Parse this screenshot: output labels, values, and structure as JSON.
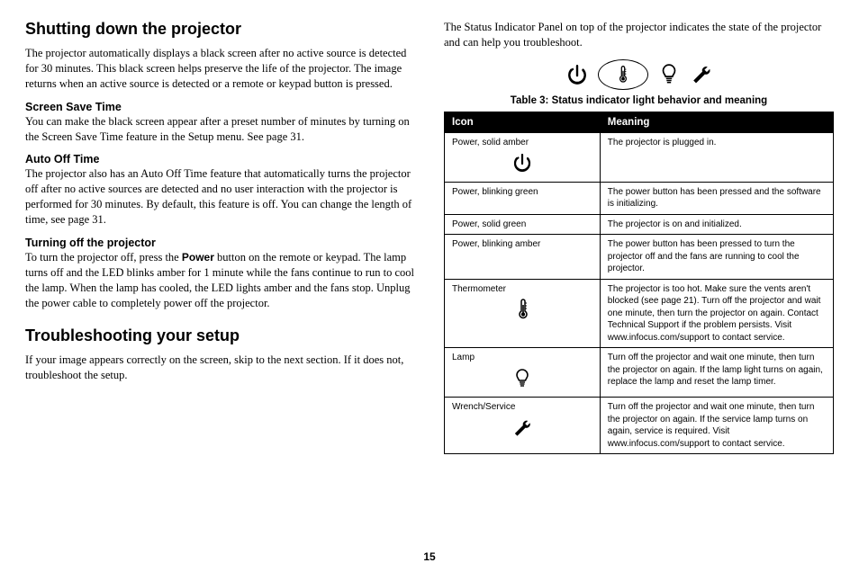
{
  "left": {
    "h1": "Shutting down the projector",
    "p1": "The projector automatically displays a black screen after no active source is detected for 30 minutes. This black screen helps preserve the life of the projector. The image returns when an active source is detected or a remote or keypad button is pressed.",
    "sub1": "Screen Save Time",
    "p2": "You can make the black screen appear after a preset number of minutes by turning on the Screen Save Time feature in the Setup menu. See page 31.",
    "sub2": "Auto Off Time",
    "p3": "The projector also has an Auto Off Time feature that automatically turns the projector off after no active sources are detected and no user interaction with the projector is performed for 30 minutes. By default, this feature is off. You can change the length of time, see page 31.",
    "sub3": "Turning off the projector",
    "p4a": "To turn the projector off, press the ",
    "p4bold": "Power",
    "p4b": " button on the remote or keypad. The lamp turns off and the LED blinks amber for 1 minute while the fans continue to run to cool the lamp. When the lamp has cooled, the LED lights amber and the fans stop. Unplug the power cable to completely power off the projector.",
    "h2": "Troubleshooting your setup",
    "p5": "If your image appears correctly on the screen, skip to the next section. If it does not, troubleshoot the setup."
  },
  "right": {
    "intro": "The Status Indicator Panel on top of the projector indicates the state of the projector and can help you troubleshoot.",
    "caption": "Table 3: Status indicator light behavior and meaning",
    "headers": [
      "Icon",
      "Meaning"
    ],
    "rows": [
      {
        "label": "Power, solid amber",
        "icon": "power",
        "meaning": "The projector is plugged in."
      },
      {
        "label": "Power, blinking green",
        "icon": "",
        "meaning": "The power button has been pressed and the software is initializing."
      },
      {
        "label": "Power, solid green",
        "icon": "",
        "meaning": "The projector is on and initialized."
      },
      {
        "label": "Power, blinking amber",
        "icon": "",
        "meaning": "The power button has been pressed to turn the projector off and the fans are running to cool the projector."
      },
      {
        "label": "Thermometer",
        "icon": "thermometer",
        "meaning": "The projector is too hot. Make sure the vents aren't blocked (see page 21). Turn off the projector and wait one minute, then turn the projector on again. Contact Technical Support if the problem persists. Visit www.infocus.com/support to contact service."
      },
      {
        "label": "Lamp",
        "icon": "lamp",
        "meaning": "Turn off the projector and wait one minute, then turn the projector on again. If the lamp light turns on again, replace the lamp and reset the lamp timer."
      },
      {
        "label": "Wrench/Service",
        "icon": "wrench",
        "meaning": "Turn off the projector and wait one minute, then turn the projector on again. If the service lamp turns on again, service is required. Visit www.infocus.com/support to contact service."
      }
    ]
  },
  "pagenum": "15",
  "icons": {
    "stroke": "#000000",
    "col1_width": "40%",
    "col2_width": "60%"
  }
}
